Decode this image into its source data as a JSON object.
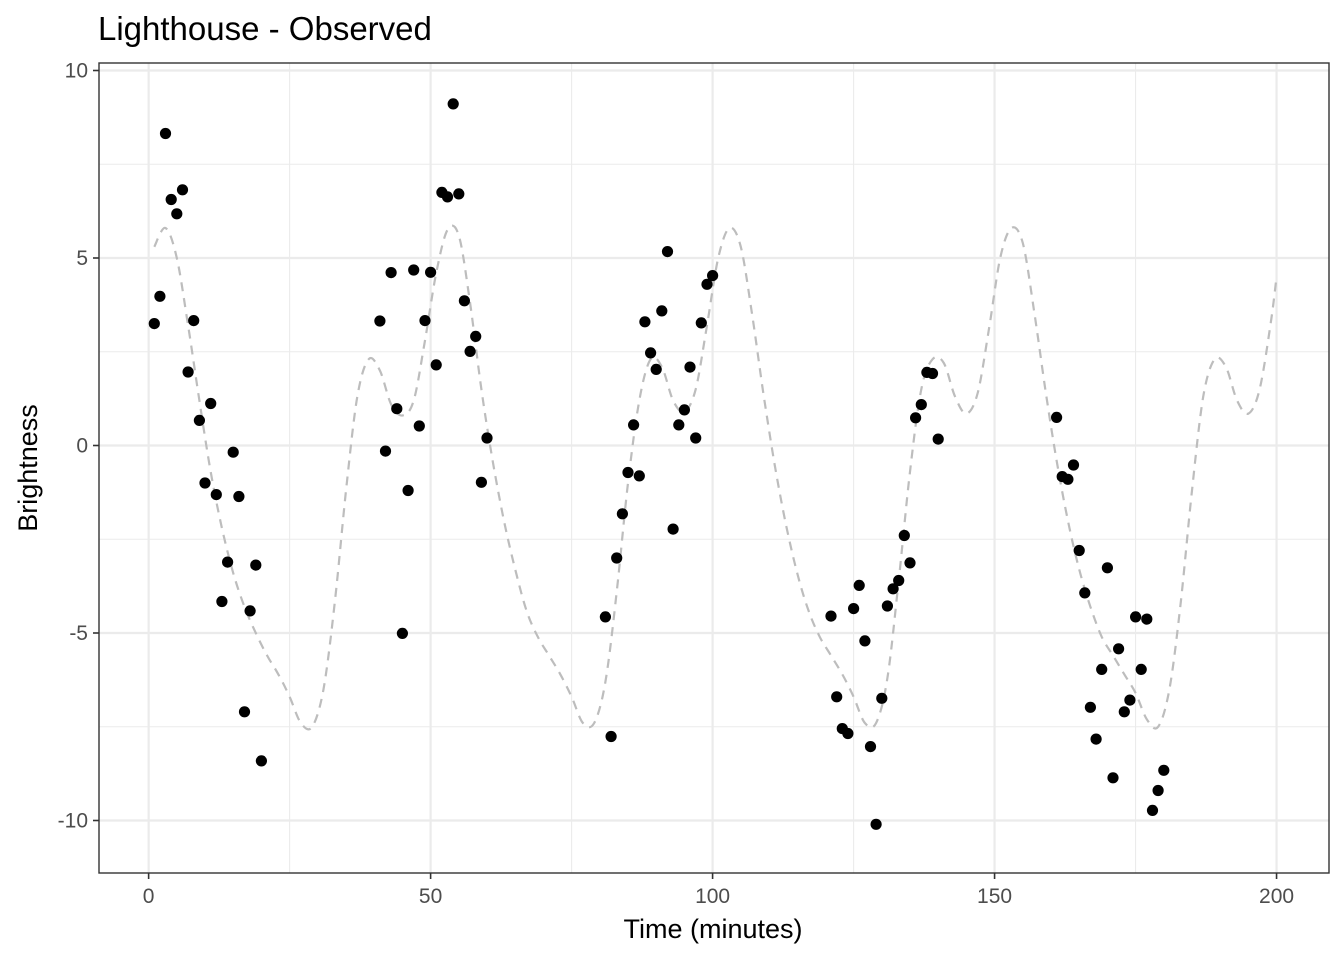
{
  "chart_data": {
    "type": "scatter",
    "title": "Lighthouse - Observed",
    "xlabel": "Time (minutes)",
    "ylabel": "Brightness",
    "xlim": [
      -8.8,
      209.3
    ],
    "ylim": [
      -11.4,
      10.2
    ],
    "x_ticks": [
      0,
      50,
      100,
      150,
      200
    ],
    "y_ticks": [
      -10,
      -5,
      0,
      5,
      10
    ],
    "x_tick_labels": [
      "0",
      "50",
      "100",
      "150",
      "200"
    ],
    "y_tick_labels": [
      "-10",
      "-5",
      "0",
      "5",
      "10"
    ],
    "grid": true,
    "legend": "none",
    "point_color": "#000000",
    "line_color": "#bdbdbd",
    "series": [
      {
        "kind": "points",
        "x": [
          1,
          2,
          3,
          4,
          5,
          6,
          7,
          8,
          9,
          10,
          11,
          12,
          13,
          14,
          15,
          16,
          17,
          18,
          19,
          20,
          41,
          42,
          43,
          44,
          45,
          46,
          47,
          48,
          49,
          50,
          51,
          52,
          53,
          54,
          55,
          56,
          57,
          58,
          59,
          60,
          81,
          82,
          83,
          84,
          85,
          86,
          87,
          88,
          89,
          90,
          91,
          92,
          93,
          94,
          95,
          96,
          97,
          98,
          99,
          100,
          121,
          122,
          123,
          124,
          125,
          126,
          127,
          128,
          129,
          130,
          131,
          132,
          133,
          134,
          135,
          136,
          137,
          138,
          139,
          140,
          161,
          162,
          163,
          164,
          165,
          166,
          167,
          168,
          169,
          170,
          171,
          172,
          173,
          174,
          175,
          176,
          177,
          178,
          179,
          180
        ],
        "y": [
          3.25,
          3.98,
          8.32,
          6.56,
          6.18,
          6.82,
          1.96,
          3.33,
          0.67,
          -1.0,
          1.12,
          -1.31,
          -4.16,
          -3.11,
          -0.18,
          -1.36,
          -7.1,
          -4.41,
          -3.19,
          -8.41,
          3.32,
          -0.15,
          4.61,
          0.98,
          -5.01,
          -1.2,
          4.68,
          0.52,
          3.33,
          4.62,
          2.15,
          6.75,
          6.63,
          9.11,
          6.71,
          3.86,
          2.51,
          2.91,
          -0.98,
          0.2,
          -4.57,
          -7.76,
          -3.0,
          -1.82,
          -0.72,
          0.55,
          -0.81,
          3.3,
          2.47,
          2.03,
          3.59,
          5.17,
          -2.23,
          0.55,
          0.95,
          2.09,
          0.2,
          3.27,
          4.3,
          4.53,
          -4.55,
          -6.7,
          -7.55,
          -7.68,
          -4.35,
          -3.73,
          -5.21,
          -8.03,
          -10.1,
          -6.74,
          -4.28,
          -3.82,
          -3.6,
          -2.4,
          -3.13,
          0.74,
          1.09,
          1.95,
          1.92,
          0.17,
          0.75,
          -0.83,
          -0.9,
          -0.52,
          -2.8,
          -3.93,
          -6.98,
          -7.83,
          -5.97,
          -3.26,
          -8.86,
          -5.42,
          -7.1,
          -6.79,
          -4.57,
          -5.97,
          -4.63,
          -9.73,
          -9.2,
          -8.66
        ]
      },
      {
        "kind": "dashed-line",
        "x": [
          1,
          3,
          5,
          7,
          9,
          11,
          13,
          15,
          17,
          19,
          21,
          23,
          25,
          27,
          29,
          31,
          33,
          35,
          37,
          39,
          41,
          43,
          45,
          47,
          49,
          51,
          53,
          55,
          57,
          59,
          61,
          63,
          65,
          67,
          69,
          71,
          73,
          75,
          77,
          79,
          81,
          83,
          85,
          87,
          89,
          91,
          93,
          95,
          97,
          99,
          101,
          103,
          105,
          107,
          109,
          111,
          113,
          115,
          117,
          119,
          121,
          123,
          125,
          127,
          129,
          131,
          133,
          135,
          137,
          139,
          141,
          143,
          145,
          147,
          149,
          151,
          153,
          155,
          157,
          159,
          161,
          163,
          165,
          167,
          169,
          171,
          173,
          175,
          177,
          179,
          181,
          183,
          185,
          187,
          189,
          191,
          193,
          195,
          197,
          199,
          200
        ],
        "y": [
          5.3,
          5.8,
          5.0,
          3.2,
          1.2,
          -0.7,
          -2.2,
          -3.4,
          -4.3,
          -5.0,
          -5.6,
          -6.1,
          -6.7,
          -7.4,
          -7.5,
          -6.5,
          -4.2,
          -1.2,
          1.3,
          2.3,
          2.0,
          1.1,
          0.8,
          1.2,
          2.8,
          4.6,
          5.75,
          5.6,
          3.8,
          1.5,
          -0.4,
          -2.0,
          -3.3,
          -4.4,
          -5.1,
          -5.6,
          -6.1,
          -6.7,
          -7.4,
          -7.4,
          -6.3,
          -3.9,
          -1.0,
          1.2,
          2.3,
          2.1,
          1.2,
          0.9,
          1.5,
          3.2,
          5.0,
          5.8,
          5.3,
          3.5,
          1.4,
          -0.5,
          -2.1,
          -3.4,
          -4.4,
          -5.1,
          -5.6,
          -6.1,
          -6.7,
          -7.4,
          -7.4,
          -6.2,
          -3.6,
          -0.7,
          1.5,
          2.3,
          2.2,
          1.3,
          0.85,
          1.4,
          3.1,
          5.0,
          5.8,
          5.4,
          3.6,
          1.5,
          -0.4,
          -2.0,
          -3.3,
          -4.3,
          -5.1,
          -5.6,
          -6.1,
          -6.6,
          -7.3,
          -7.5,
          -6.5,
          -4.2,
          -1.2,
          1.3,
          2.3,
          2.1,
          1.2,
          0.85,
          1.5,
          3.3,
          4.5
        ]
      }
    ]
  }
}
